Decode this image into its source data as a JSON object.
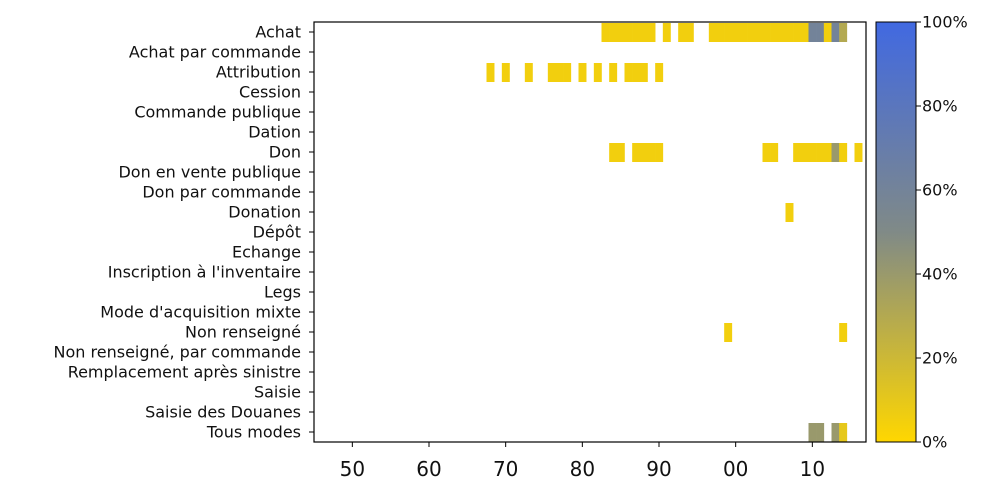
{
  "chart_data": {
    "type": "heatmap",
    "title": "",
    "xlabel": "",
    "ylabel": "",
    "categories": [
      "Achat",
      "Achat par commande",
      "Attribution",
      "Cession",
      "Commande publique",
      "Dation",
      "Don",
      "Don en vente publique",
      "Don par commande",
      "Donation",
      "Dépôt",
      "Echange",
      "Inscription à l'inventaire",
      "Legs",
      "Mode d'acquisition mixte",
      "Non renseigné",
      "Non renseigné, par commande",
      "Remplacement après sinistre",
      "Saisie",
      "Saisie des Douanes",
      "Tous modes"
    ],
    "x_range": [
      1945,
      2017
    ],
    "x_ticks": [
      1950,
      1960,
      1970,
      1980,
      1990,
      2000,
      2010
    ],
    "x_tick_labels": [
      "50",
      "60",
      "70",
      "80",
      "90",
      "00",
      "10"
    ],
    "colorbar": {
      "range": [
        0,
        1
      ],
      "ticks": [
        0,
        0.2,
        0.4,
        0.6,
        0.8,
        1.0
      ],
      "tick_labels": [
        "0%",
        "20%",
        "40%",
        "60%",
        "80%",
        "100%"
      ],
      "color_low": "#ffd700",
      "color_mid": "#808a87",
      "color_high": "#4169e1"
    },
    "series": [
      {
        "category": "Achat",
        "cells": [
          {
            "x": 1983,
            "v": 0.05
          },
          {
            "x": 1984,
            "v": 0.05
          },
          {
            "x": 1985,
            "v": 0.05
          },
          {
            "x": 1986,
            "v": 0.05
          },
          {
            "x": 1987,
            "v": 0.05
          },
          {
            "x": 1988,
            "v": 0.05
          },
          {
            "x": 1989,
            "v": 0.05
          },
          {
            "x": 1991,
            "v": 0.05
          },
          {
            "x": 1993,
            "v": 0.05
          },
          {
            "x": 1994,
            "v": 0.05
          },
          {
            "x": 1997,
            "v": 0.05
          },
          {
            "x": 1998,
            "v": 0.05
          },
          {
            "x": 1999,
            "v": 0.05
          },
          {
            "x": 2000,
            "v": 0.05
          },
          {
            "x": 2001,
            "v": 0.05
          },
          {
            "x": 2002,
            "v": 0.05
          },
          {
            "x": 2003,
            "v": 0.05
          },
          {
            "x": 2004,
            "v": 0.05
          },
          {
            "x": 2005,
            "v": 0.05
          },
          {
            "x": 2006,
            "v": 0.05
          },
          {
            "x": 2007,
            "v": 0.05
          },
          {
            "x": 2008,
            "v": 0.05
          },
          {
            "x": 2009,
            "v": 0.05
          },
          {
            "x": 2010,
            "v": 0.6
          },
          {
            "x": 2011,
            "v": 0.6
          },
          {
            "x": 2012,
            "v": 0.05
          },
          {
            "x": 2013,
            "v": 0.6
          },
          {
            "x": 2014,
            "v": 0.3
          }
        ]
      },
      {
        "category": "Attribution",
        "cells": [
          {
            "x": 1968,
            "v": 0.05
          },
          {
            "x": 1970,
            "v": 0.05
          },
          {
            "x": 1973,
            "v": 0.05
          },
          {
            "x": 1976,
            "v": 0.05
          },
          {
            "x": 1977,
            "v": 0.05
          },
          {
            "x": 1978,
            "v": 0.05
          },
          {
            "x": 1980,
            "v": 0.05
          },
          {
            "x": 1982,
            "v": 0.05
          },
          {
            "x": 1984,
            "v": 0.05
          },
          {
            "x": 1986,
            "v": 0.05
          },
          {
            "x": 1987,
            "v": 0.05
          },
          {
            "x": 1988,
            "v": 0.05
          },
          {
            "x": 1990,
            "v": 0.05
          }
        ]
      },
      {
        "category": "Don",
        "cells": [
          {
            "x": 1984,
            "v": 0.05
          },
          {
            "x": 1985,
            "v": 0.05
          },
          {
            "x": 1987,
            "v": 0.05
          },
          {
            "x": 1988,
            "v": 0.05
          },
          {
            "x": 1989,
            "v": 0.05
          },
          {
            "x": 1990,
            "v": 0.05
          },
          {
            "x": 2004,
            "v": 0.05
          },
          {
            "x": 2005,
            "v": 0.05
          },
          {
            "x": 2008,
            "v": 0.05
          },
          {
            "x": 2009,
            "v": 0.05
          },
          {
            "x": 2010,
            "v": 0.05
          },
          {
            "x": 2011,
            "v": 0.05
          },
          {
            "x": 2012,
            "v": 0.05
          },
          {
            "x": 2013,
            "v": 0.4
          },
          {
            "x": 2014,
            "v": 0.05
          },
          {
            "x": 2016,
            "v": 0.05
          }
        ]
      },
      {
        "category": "Donation",
        "cells": [
          {
            "x": 2007,
            "v": 0.05
          }
        ]
      },
      {
        "category": "Non renseigné",
        "cells": [
          {
            "x": 1999,
            "v": 0.05
          },
          {
            "x": 2014,
            "v": 0.05
          }
        ]
      },
      {
        "category": "Tous modes",
        "cells": [
          {
            "x": 2010,
            "v": 0.4
          },
          {
            "x": 2011,
            "v": 0.4
          },
          {
            "x": 2013,
            "v": 0.4
          },
          {
            "x": 2014,
            "v": 0.1
          }
        ]
      }
    ],
    "grid": false,
    "legend": "colorbar-right"
  }
}
